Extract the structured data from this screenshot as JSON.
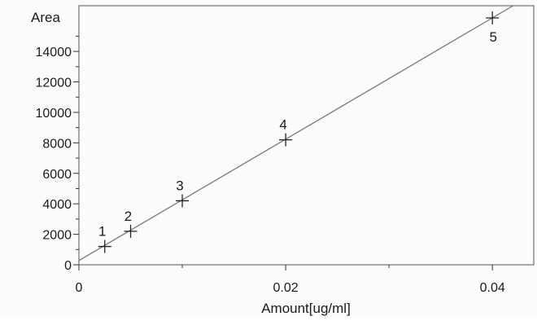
{
  "chart_data": {
    "type": "scatter",
    "xlabel": "Amount[ug/ml]",
    "ylabel": "Area",
    "xlim": [
      0,
      0.044
    ],
    "ylim": [
      0,
      17000
    ],
    "x_ticks": [
      0,
      0.02,
      0.04
    ],
    "x_tick_labels": [
      "0",
      "0.02",
      "0.04"
    ],
    "y_ticks": [
      0,
      2000,
      4000,
      6000,
      8000,
      10000,
      12000,
      14000
    ],
    "y_tick_labels": [
      "0",
      "2000",
      "4000",
      "6000",
      "8000",
      "10000",
      "12000",
      "14000"
    ],
    "grid": false,
    "series": [
      {
        "marker": "plus",
        "points": [
          {
            "label": "1",
            "x": 0.0025,
            "y": 1200
          },
          {
            "label": "2",
            "x": 0.005,
            "y": 2200
          },
          {
            "label": "3",
            "x": 0.01,
            "y": 4200
          },
          {
            "label": "4",
            "x": 0.02,
            "y": 8200
          },
          {
            "label": "5",
            "x": 0.04,
            "y": 16200
          }
        ]
      }
    ],
    "fit_line": {
      "type": "linear",
      "slope": 398000,
      "intercept": 280
    },
    "colors": {
      "axis": "#333333",
      "line": "#777777",
      "marker": "#222222"
    }
  }
}
